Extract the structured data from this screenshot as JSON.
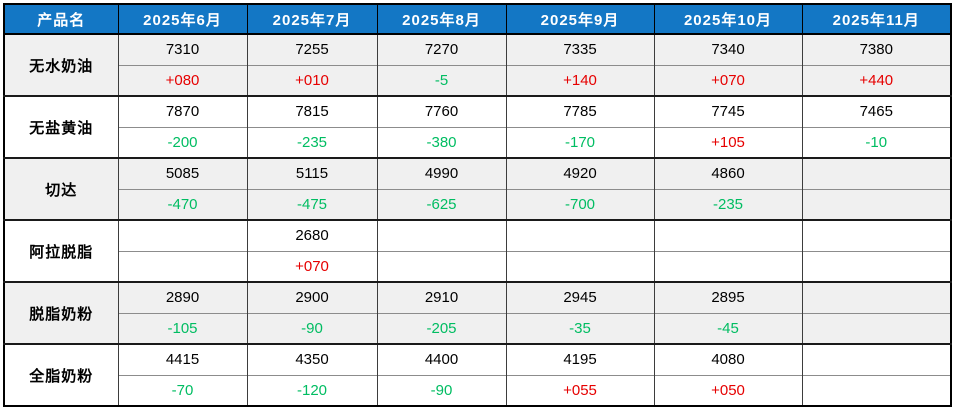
{
  "colors": {
    "header_bg": "#1377c5",
    "header_text": "#ffffff",
    "positive_change": "#e60000",
    "negative_change": "#00bd62",
    "alt_group_bg": "#f0f0f0"
  },
  "chart_data": {
    "type": "table",
    "title": "",
    "product_header": "产品名",
    "columns": [
      "产品名",
      "2025年6月",
      "2025年7月",
      "2025年8月",
      "2025年9月",
      "2025年10月",
      "2025年11月"
    ],
    "months": [
      "2025年6月",
      "2025年7月",
      "2025年8月",
      "2025年9月",
      "2025年10月",
      "2025年11月"
    ],
    "rows": [
      {
        "name": "无水奶油",
        "values": [
          "7310",
          "7255",
          "7270",
          "7335",
          "7340",
          "7380"
        ],
        "changes": [
          "+080",
          "+010",
          "-5",
          "+140",
          "+070",
          "+440"
        ]
      },
      {
        "name": "无盐黄油",
        "values": [
          "7870",
          "7815",
          "7760",
          "7785",
          "7745",
          "7465"
        ],
        "changes": [
          "-200",
          "-235",
          "-380",
          "-170",
          "+105",
          "-10"
        ]
      },
      {
        "name": "切达",
        "values": [
          "5085",
          "5115",
          "4990",
          "4920",
          "4860",
          ""
        ],
        "changes": [
          "-470",
          "-475",
          "-625",
          "-700",
          "-235",
          ""
        ]
      },
      {
        "name": "阿拉脱脂",
        "values": [
          "",
          "2680",
          "",
          "",
          "",
          ""
        ],
        "changes": [
          "",
          "+070",
          "",
          "",
          "",
          ""
        ]
      },
      {
        "name": "脱脂奶粉",
        "values": [
          "2890",
          "2900",
          "2910",
          "2945",
          "2895",
          ""
        ],
        "changes": [
          "-105",
          "-90",
          "-205",
          "-35",
          "-45",
          ""
        ]
      },
      {
        "name": "全脂奶粉",
        "values": [
          "4415",
          "4350",
          "4400",
          "4195",
          "4080",
          ""
        ],
        "changes": [
          "-70",
          "-120",
          "-90",
          "+055",
          "+050",
          ""
        ]
      }
    ]
  }
}
